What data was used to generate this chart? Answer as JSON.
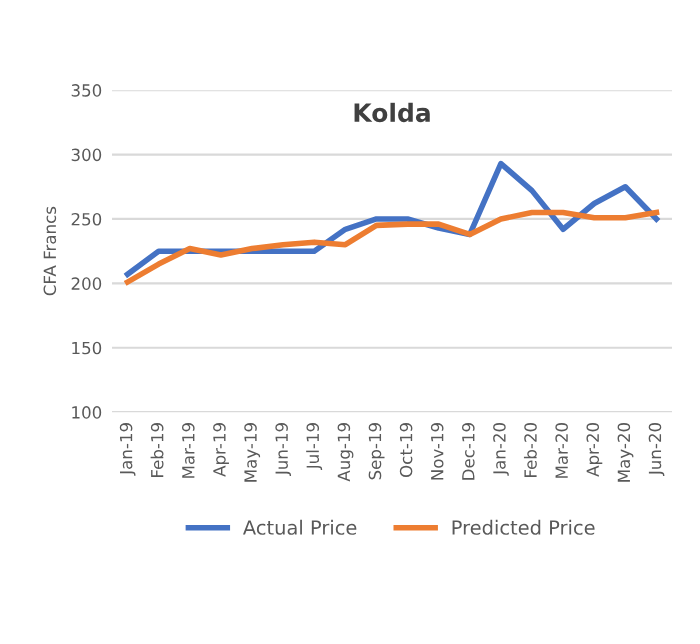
{
  "chart_data": {
    "type": "line",
    "title": "Kolda",
    "ylabel": "CFA Francs",
    "categories": [
      "Jan-19",
      "Feb-19",
      "Mar-19",
      "Apr-19",
      "May-19",
      "Jun-19",
      "Jul-19",
      "Aug-19",
      "Sep-19",
      "Oct-19",
      "Nov-19",
      "Dec-19",
      "Jan-20",
      "Feb-20",
      "Mar-20",
      "Apr-20",
      "May-20",
      "Jun-20"
    ],
    "series": [
      {
        "name": "Actual Price",
        "color": "#4472c4",
        "values": [
          207,
          225,
          225,
          225,
          225,
          225,
          225,
          242,
          250,
          250,
          243,
          238,
          293,
          272,
          242,
          262,
          275,
          250
        ]
      },
      {
        "name": "Predicted Price",
        "color": "#ed7d31",
        "values": [
          201,
          215,
          227,
          222,
          227,
          230,
          232,
          230,
          245,
          246,
          246,
          238,
          250,
          255,
          255,
          251,
          251,
          255
        ]
      }
    ],
    "ylim": [
      100,
      350
    ],
    "yticks": [
      100,
      150,
      200,
      250,
      300,
      350
    ],
    "grid": "y",
    "legend": "bottom",
    "line_style": "solid"
  }
}
